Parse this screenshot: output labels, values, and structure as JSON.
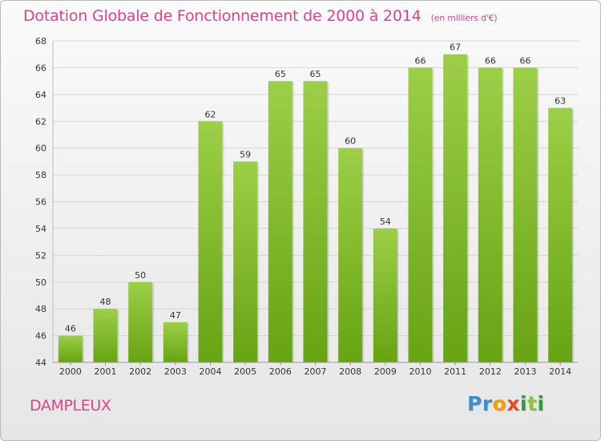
{
  "chart_data": {
    "type": "bar",
    "title": "Dotation Globale de Fonctionnement de 2000 à 2014",
    "unit_label": "(en milliers d'€)",
    "categories": [
      "2000",
      "2001",
      "2002",
      "2003",
      "2004",
      "2005",
      "2006",
      "2007",
      "2008",
      "2009",
      "2010",
      "2011",
      "2012",
      "2013",
      "2014"
    ],
    "values": [
      46,
      48,
      50,
      47,
      62,
      59,
      65,
      65,
      60,
      54,
      66,
      67,
      66,
      66,
      63
    ],
    "ylim": [
      44,
      68
    ],
    "yticks": [
      44,
      46,
      48,
      50,
      52,
      54,
      56,
      58,
      60,
      62,
      64,
      66,
      68
    ],
    "grid": true,
    "colors": {
      "bar_light": "#9ccf47",
      "bar_dark": "#67a313",
      "grid": "#d6d6d6",
      "accent": "#e0428a"
    }
  },
  "footer": {
    "commune": "DAMPLEUX",
    "brand_letters": [
      {
        "char": "P",
        "color": "#3a8fd0"
      },
      {
        "char": "r",
        "color": "#3a8fd0"
      },
      {
        "char": "o",
        "color": "#f0a000"
      },
      {
        "char": "x",
        "color": "#e84a1a"
      },
      {
        "char": "i",
        "color": "#2f9b3a"
      },
      {
        "char": "t",
        "color": "#8cc63f"
      },
      {
        "char": "i",
        "color": "#2f9b3a"
      }
    ]
  }
}
